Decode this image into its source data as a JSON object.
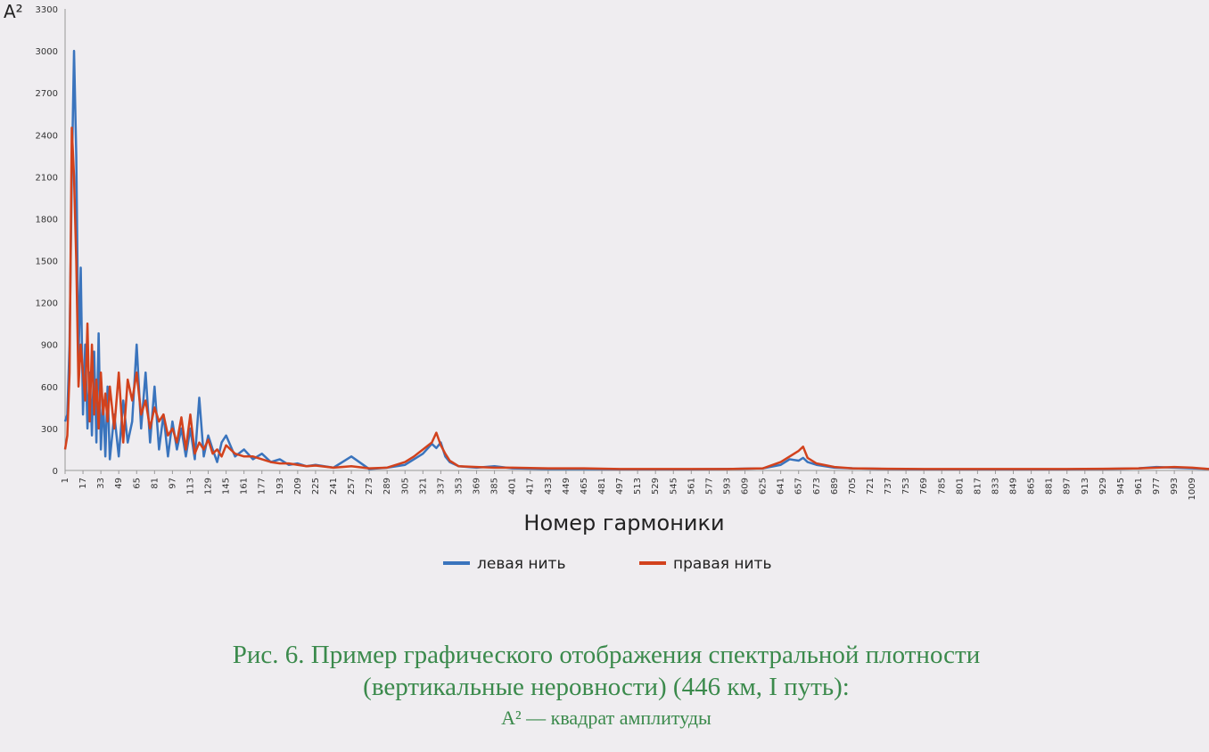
{
  "chart_data": {
    "type": "line",
    "y_label": "A²",
    "x_label": "Номер гармоники",
    "caption": [
      "Рис. 6. Пример графического отображения спектральной плотности",
      "(вертикальные неровности) (446 км, I путь):",
      "A² — квадрат амплитуды"
    ],
    "legend": "bottom",
    "grid": false,
    "xlim": [
      1,
      1024
    ],
    "ylim": [
      0,
      3300
    ],
    "yticks": [
      0,
      300,
      600,
      900,
      1200,
      1500,
      1800,
      2100,
      2400,
      2700,
      3000,
      3300
    ],
    "xticks": [
      1,
      17,
      33,
      49,
      65,
      81,
      97,
      113,
      129,
      145,
      161,
      177,
      193,
      209,
      225,
      241,
      257,
      273,
      289,
      305,
      321,
      337,
      353,
      369,
      385,
      401,
      417,
      433,
      449,
      465,
      481,
      497,
      513,
      529,
      545,
      561,
      577,
      593,
      609,
      625,
      641,
      657,
      673,
      689,
      705,
      721,
      737,
      753,
      769,
      785,
      801,
      817,
      833,
      849,
      865,
      881,
      897,
      913,
      929,
      945,
      961,
      977,
      993,
      1009
    ],
    "x": [
      1,
      3,
      5,
      7,
      9,
      11,
      13,
      15,
      17,
      19,
      21,
      23,
      25,
      27,
      29,
      31,
      33,
      35,
      37,
      39,
      41,
      45,
      49,
      53,
      57,
      61,
      65,
      69,
      73,
      77,
      81,
      85,
      89,
      93,
      97,
      101,
      105,
      109,
      113,
      117,
      121,
      125,
      129,
      133,
      137,
      141,
      145,
      153,
      161,
      169,
      177,
      185,
      193,
      201,
      209,
      217,
      225,
      241,
      257,
      273,
      289,
      305,
      313,
      321,
      329,
      333,
      337,
      341,
      345,
      353,
      369,
      385,
      401,
      433,
      465,
      497,
      529,
      561,
      593,
      625,
      641,
      649,
      657,
      661,
      665,
      673,
      689,
      705,
      737,
      769,
      801,
      833,
      865,
      897,
      929,
      961,
      977,
      993,
      1009,
      1024
    ],
    "series": [
      {
        "name": "левая нить",
        "color": "#3a74bd",
        "values": [
          350,
          400,
          900,
          2100,
          3000,
          2250,
          800,
          1450,
          400,
          900,
          300,
          700,
          250,
          850,
          200,
          980,
          150,
          500,
          100,
          600,
          80,
          400,
          100,
          500,
          200,
          350,
          900,
          300,
          700,
          200,
          600,
          150,
          400,
          100,
          350,
          150,
          300,
          100,
          300,
          80,
          520,
          100,
          250,
          150,
          60,
          200,
          250,
          100,
          150,
          80,
          120,
          60,
          80,
          40,
          50,
          30,
          40,
          20,
          100,
          10,
          20,
          40,
          80,
          120,
          190,
          160,
          200,
          100,
          60,
          30,
          20,
          30,
          15,
          10,
          10,
          8,
          8,
          8,
          10,
          15,
          40,
          80,
          70,
          90,
          60,
          40,
          20,
          15,
          10,
          8,
          8,
          8,
          8,
          8,
          10,
          15,
          25,
          20,
          15,
          10
        ]
      },
      {
        "name": "правая нить",
        "color": "#d2421d",
        "values": [
          150,
          250,
          700,
          2450,
          2100,
          1500,
          600,
          900,
          700,
          500,
          1050,
          350,
          900,
          400,
          650,
          300,
          700,
          400,
          550,
          350,
          600,
          300,
          700,
          200,
          650,
          500,
          700,
          400,
          500,
          300,
          450,
          350,
          400,
          250,
          300,
          200,
          380,
          150,
          400,
          120,
          200,
          150,
          220,
          120,
          150,
          100,
          180,
          120,
          100,
          100,
          80,
          60,
          50,
          50,
          40,
          30,
          35,
          20,
          30,
          15,
          20,
          60,
          100,
          150,
          200,
          270,
          180,
          120,
          70,
          30,
          25,
          20,
          20,
          15,
          15,
          10,
          10,
          10,
          10,
          15,
          60,
          100,
          140,
          170,
          90,
          50,
          25,
          15,
          12,
          10,
          10,
          10,
          10,
          10,
          12,
          15,
          20,
          25,
          20,
          10
        ]
      }
    ]
  }
}
